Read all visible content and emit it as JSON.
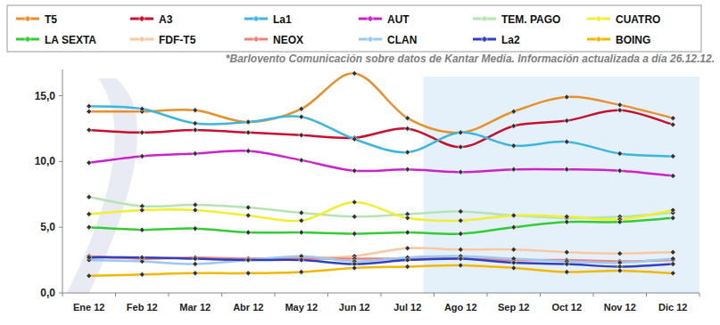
{
  "chart_data": {
    "type": "line",
    "annotations": [
      "*Barlovento Comunicación sobre datos de Kantar Media. Información actualizada a día 26.12.12."
    ],
    "categories": [
      "Ene 12",
      "Feb 12",
      "Mar 12",
      "Abr 12",
      "May 12",
      "Jun 12",
      "Jul 12",
      "Ago 12",
      "Sep 12",
      "Oct 12",
      "Nov 12",
      "Dic 12"
    ],
    "ylim": [
      0,
      17
    ],
    "yticks": [
      {
        "value": 0,
        "label": "0,0"
      },
      {
        "value": 5,
        "label": "5,0"
      },
      {
        "value": 10,
        "label": "10,0"
      },
      {
        "value": 15,
        "label": "15,0"
      }
    ],
    "grid": false,
    "legend": "top",
    "marker": "diamond",
    "series": [
      {
        "name": "T5",
        "color": "#e8902a",
        "values": [
          13.8,
          13.8,
          13.9,
          13.0,
          14.0,
          16.7,
          13.3,
          12.2,
          13.8,
          14.9,
          14.3,
          13.3
        ]
      },
      {
        "name": "A3",
        "color": "#c8102e",
        "values": [
          12.4,
          12.2,
          12.4,
          12.2,
          12.0,
          11.8,
          12.5,
          11.1,
          12.7,
          13.1,
          13.9,
          12.8
        ]
      },
      {
        "name": "La1",
        "color": "#3cb6e0",
        "values": [
          14.2,
          14.0,
          12.9,
          13.0,
          13.4,
          11.7,
          10.7,
          12.2,
          11.2,
          11.5,
          10.6,
          10.4
        ]
      },
      {
        "name": "AUT",
        "color": "#cc22cc",
        "values": [
          9.9,
          10.4,
          10.6,
          10.8,
          10.1,
          9.3,
          9.4,
          9.2,
          9.4,
          9.4,
          9.3,
          8.9
        ]
      },
      {
        "name": "TEM. PAGO",
        "color": "#b4e4b0",
        "values": [
          7.3,
          6.6,
          6.7,
          6.5,
          6.1,
          5.8,
          6.0,
          6.2,
          5.9,
          5.7,
          5.8,
          6.1
        ]
      },
      {
        "name": "CUATRO",
        "color": "#f2ee30",
        "values": [
          6.0,
          6.3,
          6.3,
          5.9,
          5.5,
          6.9,
          5.7,
          5.5,
          5.9,
          5.8,
          5.6,
          6.3
        ]
      },
      {
        "name": "LA SEXTA",
        "color": "#33cc33",
        "values": [
          5.0,
          4.8,
          4.9,
          4.6,
          4.6,
          4.5,
          4.6,
          4.5,
          5.0,
          5.4,
          5.4,
          5.7
        ]
      },
      {
        "name": "FDF-T5",
        "color": "#f8c8a0",
        "values": [
          2.7,
          2.7,
          2.6,
          2.6,
          2.7,
          2.8,
          3.4,
          3.3,
          3.3,
          3.1,
          3.0,
          3.1
        ]
      },
      {
        "name": "NEOX",
        "color": "#f08078",
        "values": [
          2.8,
          2.6,
          2.7,
          2.6,
          2.6,
          2.6,
          2.6,
          2.6,
          2.5,
          2.5,
          2.4,
          2.5
        ]
      },
      {
        "name": "CLAN",
        "color": "#9cc8f0",
        "values": [
          2.5,
          2.4,
          2.2,
          2.5,
          2.8,
          2.4,
          2.7,
          2.8,
          2.6,
          2.4,
          2.3,
          2.6
        ]
      },
      {
        "name": "La2",
        "color": "#3040c0",
        "values": [
          2.7,
          2.7,
          2.6,
          2.5,
          2.5,
          2.2,
          2.5,
          2.6,
          2.3,
          2.2,
          2.0,
          2.2
        ]
      },
      {
        "name": "BOING",
        "color": "#f0b800",
        "values": [
          1.3,
          1.4,
          1.5,
          1.5,
          1.6,
          1.9,
          2.0,
          2.1,
          1.9,
          1.6,
          1.7,
          1.5
        ]
      }
    ]
  }
}
